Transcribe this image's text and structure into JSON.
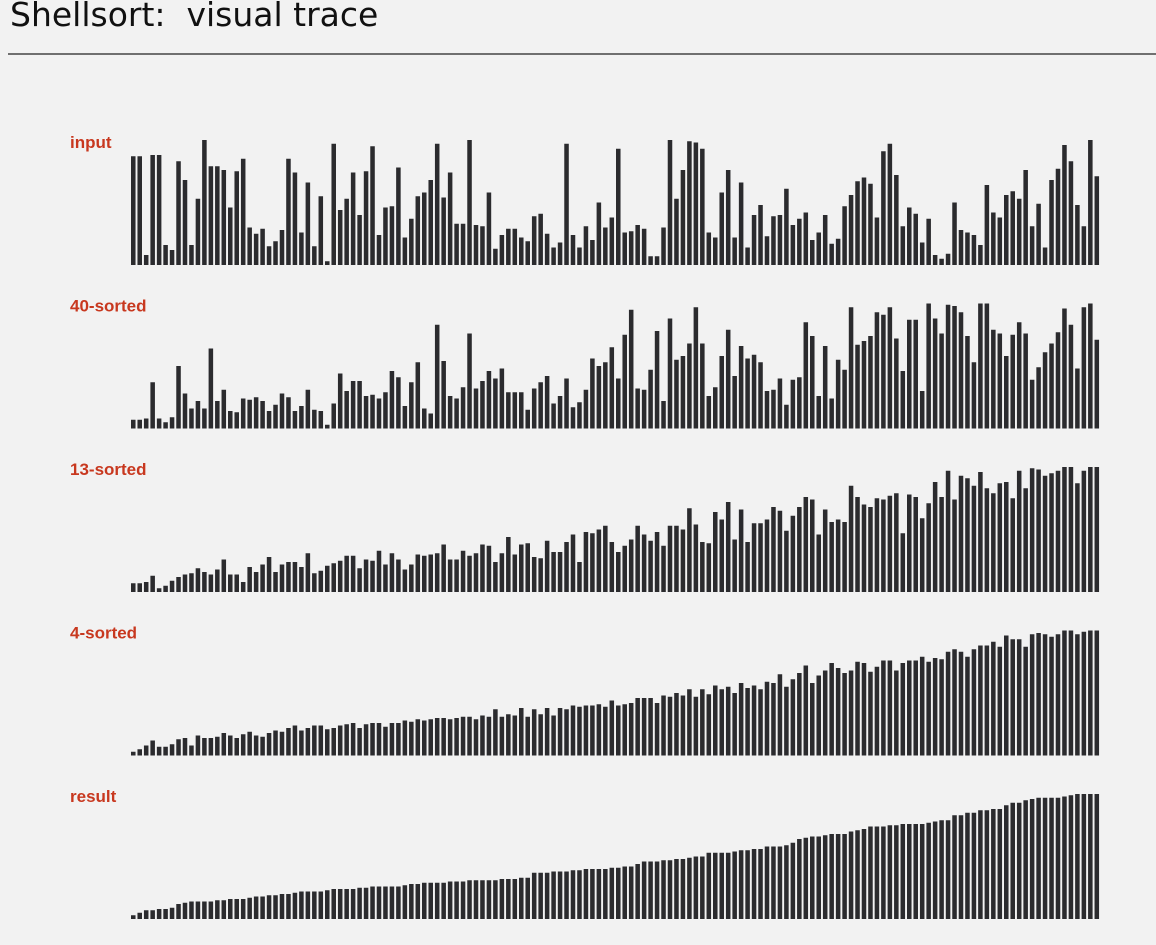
{
  "header": {
    "title": "Shellsort:  visual trace"
  },
  "chart_data": [
    {
      "type": "bar",
      "title": "input",
      "color": "#2b2b2e",
      "values": [
        87,
        87,
        8,
        88,
        88,
        16,
        12,
        83,
        68,
        16,
        53,
        100,
        79,
        79,
        76,
        46,
        75,
        85,
        30,
        25,
        29,
        15,
        19,
        28,
        85,
        74,
        26,
        66,
        15,
        55,
        3,
        97,
        44,
        53,
        74,
        40,
        75,
        95,
        24,
        46,
        47,
        78,
        22,
        37,
        55,
        58,
        68,
        97,
        54,
        74,
        33,
        33,
        100,
        32,
        31,
        58,
        13,
        24,
        29,
        29,
        22,
        19,
        39,
        41,
        25,
        14,
        18,
        97,
        24,
        14,
        31,
        20,
        50,
        30,
        38,
        93,
        26,
        27,
        32,
        29,
        7,
        7,
        30,
        100,
        53,
        76,
        99,
        98,
        93,
        26,
        22,
        58,
        76,
        22,
        66,
        14,
        40,
        48,
        23,
        39,
        40,
        61,
        32,
        37,
        42,
        20,
        26,
        40,
        17,
        21,
        47,
        56,
        67,
        70,
        65,
        38,
        91,
        97,
        72,
        31,
        46,
        41,
        18,
        37,
        8,
        5,
        9,
        50,
        28,
        26,
        24,
        16,
        64,
        42,
        38,
        56,
        59,
        53,
        76,
        31,
        49,
        14,
        68,
        77,
        96,
        83,
        48,
        31,
        100,
        71
      ]
    },
    {
      "type": "bar",
      "title": "40-sorted",
      "color": "#2b2b2e",
      "values": [
        7,
        7,
        8,
        37,
        8,
        5,
        9,
        50,
        28,
        16,
        22,
        16,
        64,
        22,
        31,
        14,
        13,
        24,
        23,
        25,
        22,
        14,
        19,
        28,
        25,
        14,
        18,
        31,
        15,
        14,
        3,
        20,
        44,
        30,
        38,
        38,
        26,
        27,
        24,
        29,
        46,
        41,
        18,
        37,
        53,
        16,
        12,
        83,
        54,
        26,
        24,
        33,
        76,
        32,
        38,
        46,
        40,
        48,
        29,
        29,
        29,
        15,
        32,
        37,
        42,
        20,
        26,
        40,
        17,
        21,
        31,
        56,
        50,
        53,
        65,
        40,
        75,
        95,
        32,
        31,
        47,
        78,
        22,
        88,
        55,
        58,
        68,
        97,
        68,
        26,
        33,
        58,
        79,
        42,
        66,
        56,
        59,
        53,
        30,
        31,
        40,
        19,
        39,
        41,
        85,
        74,
        26,
        66,
        24,
        55,
        47,
        97,
        67,
        70,
        74,
        93,
        91,
        97,
        72,
        46,
        87,
        87,
        30,
        100,
        88,
        76,
        99,
        98,
        93,
        74,
        53,
        100,
        100,
        79,
        76,
        58,
        75,
        85,
        76,
        39,
        49,
        61,
        68,
        77,
        96,
        83,
        48,
        97,
        100,
        71
      ]
    },
    {
      "type": "bar",
      "title": "13-sorted",
      "color": "#2b2b2e",
      "values": [
        7,
        7,
        8,
        13,
        3,
        5,
        9,
        12,
        14,
        15,
        19,
        16,
        14,
        18,
        26,
        14,
        14,
        8,
        20,
        16,
        22,
        28,
        16,
        22,
        24,
        24,
        20,
        31,
        15,
        17,
        21,
        23,
        25,
        29,
        29,
        19,
        26,
        25,
        33,
        22,
        31,
        26,
        18,
        22,
        30,
        29,
        30,
        31,
        38,
        26,
        26,
        33,
        29,
        31,
        38,
        37,
        24,
        31,
        44,
        30,
        38,
        39,
        28,
        27,
        41,
        32,
        32,
        40,
        46,
        24,
        48,
        47,
        50,
        53,
        40,
        32,
        37,
        42,
        53,
        46,
        41,
        48,
        37,
        53,
        53,
        50,
        67,
        54,
        40,
        39,
        64,
        58,
        72,
        42,
        66,
        40,
        55,
        55,
        58,
        68,
        65,
        49,
        61,
        68,
        76,
        74,
        46,
        66,
        56,
        58,
        56,
        85,
        76,
        70,
        68,
        75,
        74,
        77,
        79,
        47,
        78,
        76,
        59,
        71,
        88,
        76,
        97,
        74,
        93,
        91,
        85,
        96,
        83,
        79,
        87,
        88,
        75,
        97,
        83,
        99,
        98,
        93,
        95,
        97,
        100,
        100,
        87,
        97,
        100,
        100
      ]
    },
    {
      "type": "bar",
      "title": "4-sorted",
      "color": "#2b2b2e",
      "values": [
        3,
        5,
        8,
        12,
        7,
        7,
        9,
        13,
        14,
        8,
        16,
        14,
        14,
        15,
        18,
        16,
        14,
        17,
        19,
        16,
        15,
        18,
        20,
        19,
        22,
        24,
        20,
        22,
        24,
        24,
        21,
        22,
        24,
        25,
        26,
        22,
        25,
        26,
        26,
        23,
        26,
        26,
        28,
        27,
        29,
        28,
        29,
        30,
        30,
        29,
        30,
        31,
        31,
        29,
        32,
        31,
        37,
        31,
        33,
        32,
        38,
        31,
        37,
        33,
        38,
        32,
        38,
        37,
        40,
        39,
        40,
        40,
        41,
        39,
        44,
        40,
        41,
        42,
        46,
        46,
        46,
        42,
        48,
        47,
        50,
        48,
        53,
        47,
        53,
        49,
        56,
        53,
        55,
        50,
        58,
        54,
        56,
        53,
        59,
        58,
        65,
        55,
        61,
        66,
        72,
        58,
        64,
        68,
        74,
        70,
        66,
        68,
        75,
        74,
        67,
        71,
        76,
        76,
        68,
        74,
        76,
        76,
        79,
        75,
        78,
        77,
        83,
        85,
        83,
        79,
        85,
        88,
        88,
        91,
        87,
        96,
        93,
        93,
        87,
        97,
        98,
        97,
        95,
        97,
        100,
        100,
        97,
        99,
        100,
        100
      ]
    },
    {
      "type": "bar",
      "title": "result",
      "color": "#2b2b2e",
      "values": [
        3,
        5,
        7,
        7,
        8,
        8,
        9,
        12,
        13,
        14,
        14,
        14,
        14,
        15,
        15,
        16,
        16,
        16,
        17,
        18,
        18,
        19,
        19,
        20,
        20,
        21,
        22,
        22,
        22,
        22,
        23,
        24,
        24,
        24,
        24,
        25,
        25,
        26,
        26,
        26,
        26,
        26,
        27,
        28,
        28,
        29,
        29,
        29,
        29,
        30,
        30,
        30,
        31,
        31,
        31,
        31,
        31,
        32,
        32,
        32,
        33,
        33,
        37,
        37,
        37,
        38,
        38,
        38,
        39,
        39,
        40,
        40,
        40,
        40,
        41,
        41,
        42,
        42,
        44,
        46,
        46,
        46,
        47,
        47,
        48,
        48,
        49,
        50,
        50,
        53,
        53,
        53,
        53,
        54,
        55,
        55,
        56,
        56,
        58,
        58,
        58,
        59,
        61,
        64,
        65,
        66,
        66,
        67,
        68,
        68,
        68,
        70,
        71,
        72,
        74,
        74,
        74,
        75,
        75,
        76,
        76,
        76,
        76,
        77,
        78,
        79,
        79,
        83,
        83,
        85,
        85,
        87,
        87,
        88,
        88,
        91,
        93,
        93,
        95,
        96,
        97,
        97,
        97,
        97,
        98,
        99,
        100,
        100,
        100,
        100
      ]
    }
  ]
}
